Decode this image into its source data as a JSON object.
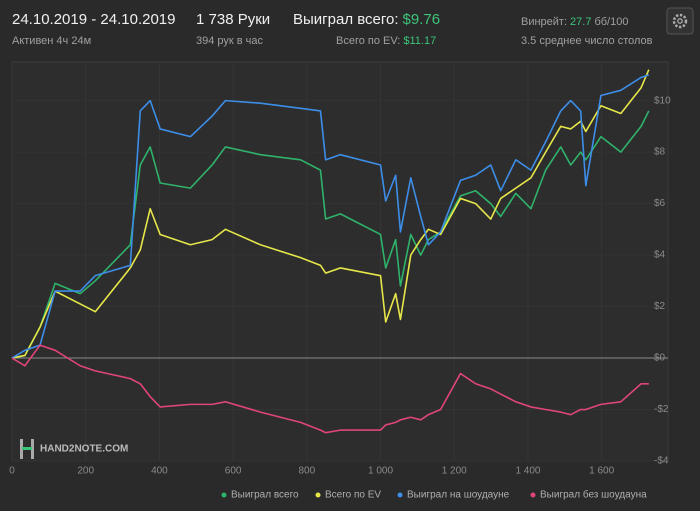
{
  "header": {
    "date_range": "24.10.2019 - 24.10.2019",
    "active": "Активен 4ч 24м",
    "hands": "1 738 Руки",
    "hands_per_hour": "394 рук в час",
    "won_label": "Выиграл всего:",
    "won_value": "$9.76",
    "ev_label": "Всего по EV:",
    "ev_value": "$11.17",
    "winrate_label": "Винрейт:",
    "winrate_value": "27.7",
    "winrate_unit": "бб/100",
    "avg_tables": "3.5 среднее число столов"
  },
  "chart_data": {
    "type": "line",
    "watermark": "HAND2NOTE.COM",
    "x": [
      0,
      35,
      76,
      117,
      185,
      226,
      321,
      348,
      375,
      402,
      484,
      543,
      579,
      674,
      783,
      837,
      851,
      891,
      1000,
      1014,
      1041,
      1054,
      1082,
      1109,
      1130,
      1163,
      1217,
      1258,
      1299,
      1326,
      1367,
      1408,
      1448,
      1489,
      1516,
      1543,
      1557,
      1598,
      1652,
      1707,
      1728
    ],
    "series": [
      {
        "name": "Выиграл всего",
        "color": "#2fb36b",
        "values": [
          0,
          0.1,
          1.2,
          2.9,
          2.5,
          3,
          4.4,
          7.5,
          8.2,
          6.8,
          6.6,
          7.5,
          8.2,
          7.9,
          7.7,
          7.3,
          5.4,
          5.6,
          4.8,
          3.5,
          4.6,
          2.8,
          4.8,
          4.0,
          4.6,
          4.9,
          6.3,
          6.5,
          6.0,
          5.5,
          6.4,
          5.8,
          7.3,
          8.2,
          7.5,
          8.0,
          7.7,
          8.6,
          8.0,
          9.0,
          9.6
        ]
      },
      {
        "name": "Всего по EV",
        "color": "#e6e64a",
        "values": [
          0,
          0.1,
          1.2,
          2.6,
          2.1,
          1.8,
          3.5,
          4.2,
          5.8,
          4.8,
          4.4,
          4.6,
          5.0,
          4.4,
          3.9,
          3.6,
          3.3,
          3.5,
          3.2,
          1.4,
          2.5,
          1.5,
          4.0,
          4.6,
          5.0,
          4.8,
          6.2,
          6.0,
          5.4,
          6.2,
          6.6,
          7.0,
          8.0,
          9.0,
          8.9,
          9.2,
          8.8,
          9.8,
          9.5,
          10.5,
          11.2
        ]
      },
      {
        "name": "Выиграл на шоудауне",
        "color": "#3d8ee8",
        "values": [
          0,
          0.3,
          0.5,
          2.6,
          2.6,
          3.2,
          3.6,
          9.6,
          10,
          8.9,
          8.6,
          9.4,
          10,
          9.9,
          9.7,
          9.6,
          7.7,
          7.9,
          7.5,
          6.1,
          7.1,
          4.9,
          7,
          5.5,
          4.4,
          4.9,
          6.9,
          7.1,
          7.5,
          6.5,
          7.7,
          7.3,
          8.4,
          9.6,
          10,
          9.6,
          6.7,
          10.2,
          10.4,
          10.9,
          11.0
        ]
      },
      {
        "name": "Выиграл без шоудауна",
        "color": "#e0457a",
        "values": [
          0,
          -0.3,
          0.5,
          0.3,
          -0.3,
          -0.5,
          -0.8,
          -1.0,
          -1.5,
          -1.9,
          -1.8,
          -1.8,
          -1.7,
          -2.1,
          -2.5,
          -2.8,
          -2.9,
          -2.8,
          -2.8,
          -2.6,
          -2.5,
          -2.4,
          -2.3,
          -2.4,
          -2.2,
          -2.0,
          -0.6,
          -1.0,
          -1.2,
          -1.4,
          -1.7,
          -1.9,
          -2.0,
          -2.1,
          -2.2,
          -2.0,
          -2.0,
          -1.8,
          -1.7,
          -1.0,
          -1.0
        ]
      }
    ],
    "xlim": [
      0,
      1780
    ],
    "ylim": [
      -4,
      11.5
    ],
    "xticks": [
      0,
      200,
      400,
      600,
      800,
      {
        "value": 1000,
        "label": "1 000"
      },
      {
        "value": 1200,
        "label": "1 200"
      },
      {
        "value": 1400,
        "label": "1 400"
      },
      {
        "value": 1600,
        "label": "1 600"
      }
    ],
    "yticks": [
      {
        "value": 10,
        "label": "$10"
      },
      {
        "value": 8,
        "label": "$8"
      },
      {
        "value": 6,
        "label": "$6"
      },
      {
        "value": 4,
        "label": "$4"
      },
      {
        "value": 2,
        "label": "$2"
      },
      {
        "value": 0,
        "label": "$0"
      },
      {
        "value": -2,
        "label": "-$2"
      },
      {
        "value": -4,
        "label": "-$4"
      }
    ],
    "grid": true,
    "legend": "bottom"
  }
}
